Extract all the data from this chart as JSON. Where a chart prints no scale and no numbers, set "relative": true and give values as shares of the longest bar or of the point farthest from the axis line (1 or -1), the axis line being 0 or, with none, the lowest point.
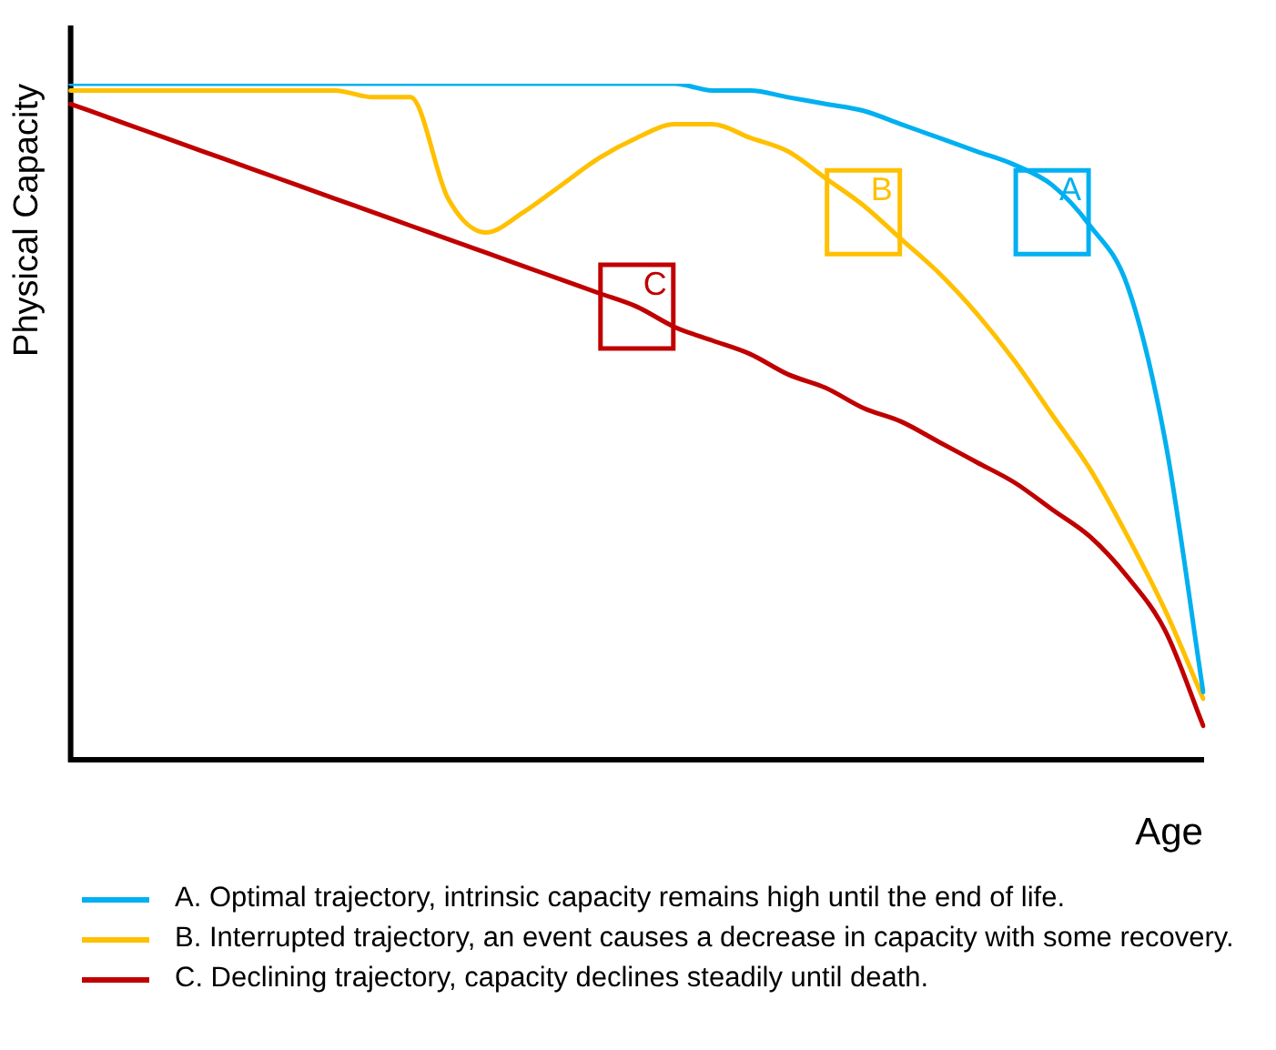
{
  "chart_data": {
    "type": "line",
    "relative": true,
    "xlabel": "Age",
    "ylabel": "Physical Capacity",
    "legend": "bottom",
    "grid": false,
    "marker": "none",
    "line_style": "solid",
    "categories": [
      null,
      null,
      null,
      null,
      null,
      null,
      null,
      null,
      null,
      null,
      null,
      null,
      null,
      null,
      null,
      null,
      null,
      null,
      null,
      null,
      null,
      null,
      null,
      null,
      null,
      null,
      null,
      null,
      null,
      null,
      null
    ],
    "series": [
      {
        "name": "A. Optimal trajectory, intrinsic capacity remains high until the end of life.",
        "color": "#00b0f0",
        "values": [
          1,
          1,
          1,
          1,
          1,
          1,
          1,
          1,
          1,
          1,
          1,
          1,
          1,
          1,
          1,
          1,
          1,
          0.99,
          0.99,
          0.98,
          0.97,
          0.96,
          0.94,
          0.92,
          0.9,
          0.88,
          0.85,
          0.79,
          0.7,
          0.47,
          0.1
        ]
      },
      {
        "name": "B. Interrupted trajectory, an event causes a decrease in capacity with some recovery.",
        "color": "#ffc000",
        "values": [
          0.99,
          0.99,
          0.99,
          0.99,
          0.99,
          0.99,
          0.99,
          0.99,
          0.98,
          0.98,
          0.83,
          0.78,
          0.81,
          0.85,
          0.89,
          0.92,
          0.94,
          0.94,
          0.92,
          0.9,
          0.86,
          0.82,
          0.77,
          0.72,
          0.66,
          0.59,
          0.51,
          0.43,
          0.33,
          0.22,
          0.09
        ]
      },
      {
        "name": "C. Declining trajectory, capacity declines steadily until death.",
        "color": "#c00000",
        "values": [
          0.97,
          0.95,
          0.93,
          0.91,
          0.89,
          0.87,
          0.85,
          0.83,
          0.81,
          0.79,
          0.77,
          0.75,
          0.73,
          0.71,
          0.69,
          0.67,
          0.64,
          0.62,
          0.6,
          0.57,
          0.55,
          0.52,
          0.5,
          0.47,
          0.44,
          0.41,
          0.37,
          0.33,
          0.27,
          0.19,
          0.05
        ]
      }
    ],
    "annotations": [
      {
        "text": "A",
        "y": 0.81
      },
      {
        "text": "B",
        "y": 0.81
      },
      {
        "text": "C",
        "y": 0.67
      }
    ]
  }
}
